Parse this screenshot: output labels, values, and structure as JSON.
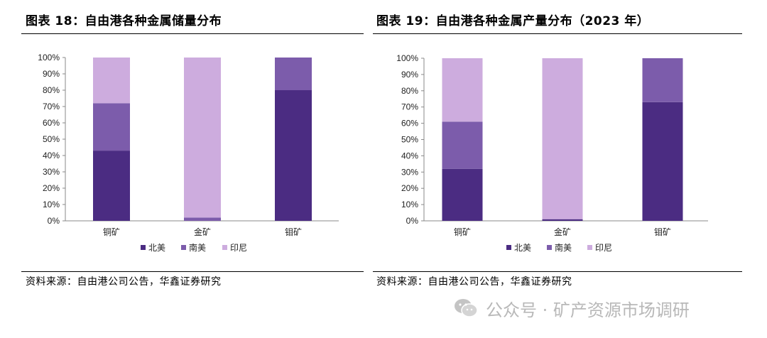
{
  "panels": [
    {
      "title": "图表 18：自由港各种金属储量分布",
      "source": "资料来源：自由港公司公告，华鑫证券研究"
    },
    {
      "title": "图表 19：自由港各种金属产量分布（2023 年）",
      "source": "资料来源：自由港公司公告，华鑫证券研究"
    }
  ],
  "watermark": {
    "text": "公众号 · 矿产资源市场调研",
    "icon": "wechat-icon"
  },
  "colors": {
    "北美": "#4b2c82",
    "南美": "#7c5cab",
    "印尼": "#cdacde"
  },
  "chart_data": [
    {
      "type": "bar",
      "stacked": true,
      "title": "图表 18：自由港各种金属储量分布",
      "categories": [
        "铜矿",
        "金矿",
        "钼矿"
      ],
      "series": [
        {
          "name": "北美",
          "values": [
            43,
            0,
            80
          ]
        },
        {
          "name": "南美",
          "values": [
            29,
            2,
            20
          ]
        },
        {
          "name": "印尼",
          "values": [
            28,
            98,
            0
          ]
        }
      ],
      "y_ticks": [
        "0%",
        "10%",
        "20%",
        "30%",
        "40%",
        "50%",
        "60%",
        "70%",
        "80%",
        "90%",
        "100%"
      ],
      "ylim": [
        0,
        100
      ],
      "grid": false,
      "legend": "bottom"
    },
    {
      "type": "bar",
      "stacked": true,
      "title": "图表 19：自由港各种金属产量分布（2023 年）",
      "categories": [
        "铜矿",
        "金矿",
        "钼矿"
      ],
      "series": [
        {
          "name": "北美",
          "values": [
            32,
            1,
            73
          ]
        },
        {
          "name": "南美",
          "values": [
            29,
            0,
            27
          ]
        },
        {
          "name": "印尼",
          "values": [
            39,
            99,
            0
          ]
        }
      ],
      "y_ticks": [
        "0%",
        "10%",
        "20%",
        "30%",
        "40%",
        "50%",
        "60%",
        "70%",
        "80%",
        "90%",
        "100%"
      ],
      "ylim": [
        0,
        100
      ],
      "grid": false,
      "legend": "bottom"
    }
  ]
}
